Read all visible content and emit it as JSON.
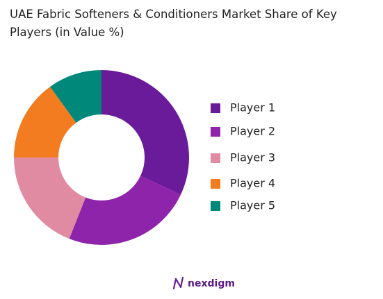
{
  "chart_data": {
    "type": "donut",
    "title": "UAE Fabric Softeners & Conditioners Market Share of Key Players (in Value %)",
    "categories": [
      "Player 1",
      "Player 2",
      "Player 3",
      "Player 4",
      "Player 5"
    ],
    "values": [
      32,
      24,
      19,
      15,
      10
    ],
    "colors": [
      "#6a1b9a",
      "#8e24aa",
      "#e08ba1",
      "#f47c20",
      "#00897b"
    ],
    "legend": "right"
  },
  "footer": {
    "brand": "nexdigm"
  }
}
